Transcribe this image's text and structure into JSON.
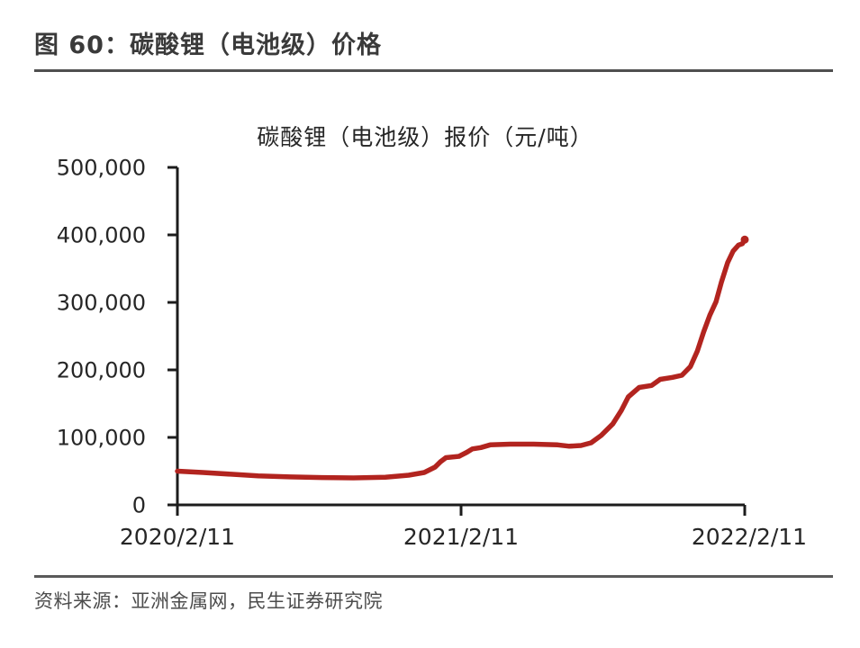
{
  "figure": {
    "title": "图 60：碳酸锂（电池级）价格",
    "source": "资料来源：亚洲金属网，民生证券研究院"
  },
  "colors": {
    "line": "#B2241F",
    "axis": "#1c1c1c",
    "title_text": "#3a3a3a",
    "label_text": "#262626",
    "source_text": "#4c4c4c"
  },
  "chart_data": {
    "type": "line",
    "title": "碳酸锂（电池级）报价（元/吨）",
    "xlabel": "",
    "ylabel": "",
    "ylim": [
      0,
      500000
    ],
    "y_ticks": [
      0,
      100000,
      200000,
      300000,
      400000,
      500000
    ],
    "y_tick_labels": [
      "0",
      "100,000",
      "200,000",
      "300,000",
      "400,000",
      "500,000"
    ],
    "x_tick_labels": [
      "2020/2/11",
      "2021/2/11",
      "2022/2/11"
    ],
    "x_range": [
      "2020/2/11",
      "2022/2/11"
    ],
    "grid": false,
    "legend_position": "none",
    "series": [
      {
        "name": "碳酸锂（电池级）报价",
        "color": "#B2241F",
        "points": [
          [
            "2020/2/11",
            50000
          ],
          [
            "2020/3/15",
            48000
          ],
          [
            "2020/4/20",
            45500
          ],
          [
            "2020/5/25",
            43000
          ],
          [
            "2020/7/5",
            41500
          ],
          [
            "2020/8/15",
            40500
          ],
          [
            "2020/9/25",
            40000
          ],
          [
            "2020/11/5",
            41000
          ],
          [
            "2020/12/5",
            44000
          ],
          [
            "2020/12/25",
            48000
          ],
          [
            "2021/1/8",
            56000
          ],
          [
            "2021/1/15",
            64000
          ],
          [
            "2021/1/22",
            70000
          ],
          [
            "2021/2/8",
            72000
          ],
          [
            "2021/2/18",
            78000
          ],
          [
            "2021/2/25",
            83000
          ],
          [
            "2021/3/8",
            85000
          ],
          [
            "2021/3/20",
            89000
          ],
          [
            "2021/4/15",
            90000
          ],
          [
            "2021/5/15",
            90000
          ],
          [
            "2021/6/15",
            89000
          ],
          [
            "2021/6/30",
            87000
          ],
          [
            "2021/7/15",
            88000
          ],
          [
            "2021/7/28",
            92000
          ],
          [
            "2021/8/10",
            103000
          ],
          [
            "2021/8/25",
            120000
          ],
          [
            "2021/9/5",
            140000
          ],
          [
            "2021/9/14",
            160000
          ],
          [
            "2021/9/28",
            174000
          ],
          [
            "2021/10/14",
            177000
          ],
          [
            "2021/10/25",
            186000
          ],
          [
            "2021/11/10",
            189000
          ],
          [
            "2021/11/22",
            192000
          ],
          [
            "2021/12/3",
            205000
          ],
          [
            "2021/12/12",
            228000
          ],
          [
            "2021/12/20",
            256000
          ],
          [
            "2021/12/28",
            281000
          ],
          [
            "2022/1/5",
            301000
          ],
          [
            "2022/1/12",
            330000
          ],
          [
            "2022/1/20",
            359000
          ],
          [
            "2022/1/27",
            376000
          ],
          [
            "2022/2/3",
            385000
          ],
          [
            "2022/2/8",
            387000
          ],
          [
            "2022/2/11",
            393000
          ]
        ]
      }
    ]
  }
}
